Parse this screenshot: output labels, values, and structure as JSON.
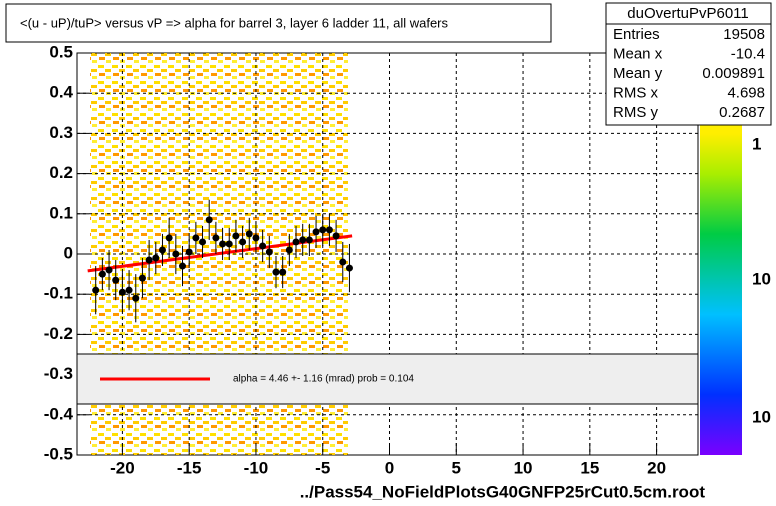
{
  "chart_data": {
    "type": "scatter",
    "title": "<(u - uP)/tuP> versus   vP => alpha for barrel 3, layer 6 ladder 11, all wafers",
    "x_label": "../Pass54_NoFieldPlotsG40GNFP25rCut0.5cm.root",
    "xlim": [
      -23.4,
      23.1
    ],
    "ylim": [
      -0.5,
      0.5
    ],
    "xticks": [
      -20,
      -15,
      -10,
      -5,
      0,
      5,
      10,
      15,
      20
    ],
    "yticks": [
      -0.5,
      -0.4,
      -0.3,
      -0.2,
      -0.1,
      0,
      0.1,
      0.2,
      0.3,
      0.4,
      0.5
    ],
    "grid": true,
    "series": [
      {
        "color": "#000000",
        "x": [
          -22,
          -21.5,
          -21,
          -20.5,
          -20,
          -19.5,
          -19,
          -18.5,
          -18,
          -17.5,
          -17,
          -16.5,
          -16,
          -15.5,
          -15,
          -14.5,
          -14,
          -13.5,
          -13,
          -12.5,
          -12,
          -11.5,
          -11,
          -10.5,
          -10,
          -9.5,
          -9,
          -8.5,
          -8,
          -7.5,
          -7,
          -6.5,
          -6,
          -5.5,
          -5,
          -4.5,
          -4,
          -3.5,
          -3
        ],
        "values": [
          -0.09,
          -0.05,
          -0.04,
          -0.065,
          -0.095,
          -0.09,
          -0.11,
          -0.06,
          -0.015,
          -0.01,
          0.01,
          0.04,
          0,
          -0.03,
          0.005,
          0.04,
          0.03,
          0.085,
          0.04,
          0.025,
          0.025,
          0.045,
          0.03,
          0.05,
          0.04,
          0.02,
          0.005,
          -0.045,
          -0.045,
          0.01,
          0.03,
          0.035,
          0.035,
          0.055,
          0.06,
          0.06,
          0.045,
          -0.02,
          -0.035
        ],
        "errors": [
          0.06,
          0.04,
          0.05,
          0.05,
          0.05,
          0.05,
          0.06,
          0.05,
          0.05,
          0.04,
          0.04,
          0.05,
          0.05,
          0.05,
          0.04,
          0.04,
          0.04,
          0.05,
          0.04,
          0.04,
          0.04,
          0.04,
          0.04,
          0.04,
          0.04,
          0.04,
          0.04,
          0.04,
          0.04,
          0.04,
          0.04,
          0.04,
          0.04,
          0.04,
          0.04,
          0.04,
          0.04,
          0.05,
          0.06
        ]
      }
    ],
    "fit": {
      "color": "#ff0000",
      "x": [
        -22.6,
        -2.8
      ],
      "values": [
        -0.042,
        0.045
      ]
    },
    "fit_label": "alpha =    4.46 +-  1.16 (mrad) prob = 0.104",
    "stats": {
      "name": "duOvertuPvP6011",
      "rows": [
        [
          "Entries",
          19508
        ],
        [
          "Mean x",
          -10.4
        ],
        [
          "Mean y",
          0.009891
        ],
        [
          "RMS x",
          4.698
        ],
        [
          "RMS y",
          0.2687
        ]
      ]
    },
    "palette_labels": [
      "1",
      "10",
      "10"
    ]
  }
}
